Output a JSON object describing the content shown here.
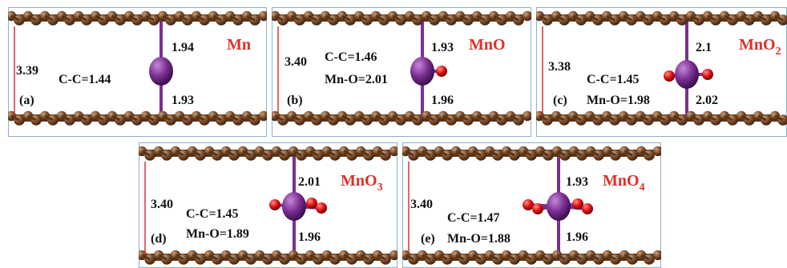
{
  "colors": {
    "carbon": "#7a4a2a",
    "bond": "#5a3418",
    "metal": "#7b2f93",
    "oxygen": "#e01414",
    "frame": "#8faed0",
    "spacing_line": "#e03030",
    "title": "#e0302a"
  },
  "panels": [
    {
      "id": "a",
      "tag": "(a)",
      "title": "Mn",
      "sub": "",
      "spacing": "3.39",
      "cc": "C-C=1.44",
      "mno": "",
      "top_bond": "1.94",
      "bottom_bond": "1.93",
      "oxygen_count": 0
    },
    {
      "id": "b",
      "tag": "(b)",
      "title": "MnO",
      "sub": "",
      "spacing": "3.40",
      "cc": "C-C=1.46",
      "mno": "Mn-O=2.01",
      "top_bond": "1.93",
      "bottom_bond": "1.96",
      "oxygen_count": 1
    },
    {
      "id": "c",
      "tag": "(c)",
      "title": "MnO",
      "sub": "2",
      "spacing": "3.38",
      "cc": "C-C=1.45",
      "mno": "Mn-O=1.98",
      "top_bond": "2.1",
      "bottom_bond": "2.02",
      "oxygen_count": 2
    },
    {
      "id": "d",
      "tag": "(d)",
      "title": "MnO",
      "sub": "3",
      "spacing": "3.40",
      "cc": "C-C=1.45",
      "mno": "Mn-O=1.89",
      "top_bond": "2.01",
      "bottom_bond": "1.96",
      "oxygen_count": 3
    },
    {
      "id": "e",
      "tag": "(e)",
      "title": "MnO",
      "sub": "4",
      "spacing": "3.40",
      "cc": "C-C=1.47",
      "mno": "Mn-O=1.88",
      "top_bond": "1.93",
      "bottom_bond": "1.96",
      "oxygen_count": 4
    }
  ]
}
